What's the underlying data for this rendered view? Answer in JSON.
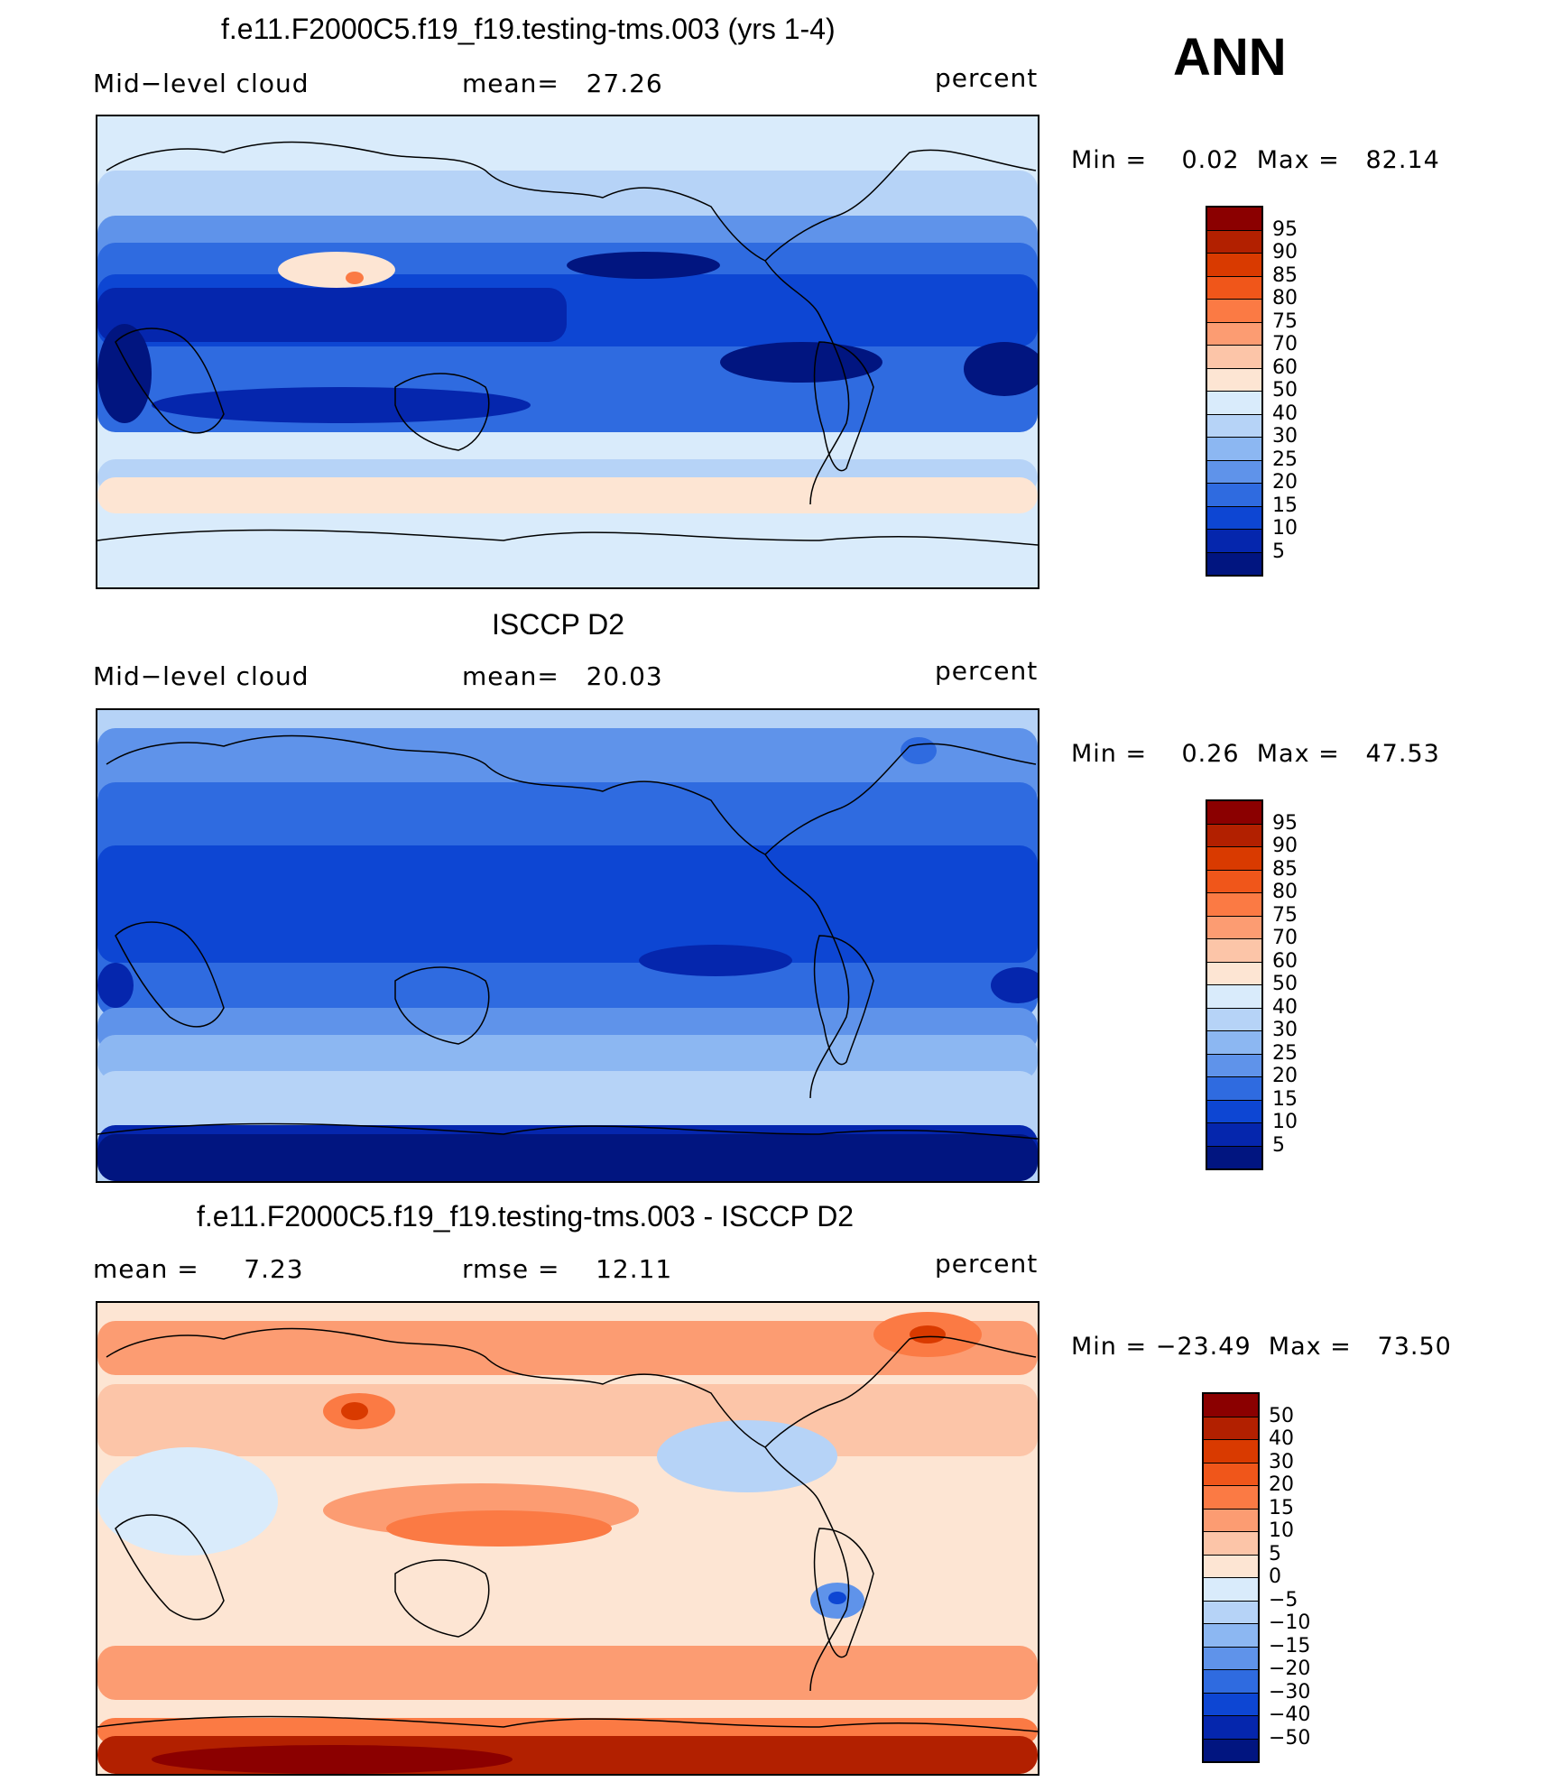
{
  "season": "ANN",
  "panels": [
    {
      "title": "f.e11.F2000C5.f19_f19.testing-tms.003 (yrs 1-4)",
      "left_label": "Mid−level cloud",
      "center_label": "mean=   27.26",
      "units": "percent",
      "range_text": "Min =    0.02  Max =   82.14",
      "type": "field",
      "scheme": "model",
      "colorbar": {
        "labels": [
          "95",
          "90",
          "85",
          "80",
          "75",
          "70",
          "60",
          "50",
          "40",
          "30",
          "25",
          "20",
          "15",
          "10",
          "5"
        ],
        "colors": [
          "#8b0000",
          "#b22000",
          "#d93a00",
          "#f0561a",
          "#fb7a44",
          "#fc9c72",
          "#fcc5a8",
          "#fde5d3",
          "#d9ebfb",
          "#b6d3f7",
          "#8cb7f2",
          "#5f93ea",
          "#2f6be0",
          "#0d46d3",
          "#0526ad",
          "#011580"
        ]
      }
    },
    {
      "title": "ISCCP D2",
      "left_label": "Mid−level cloud",
      "center_label": "mean=   20.03",
      "units": "percent",
      "range_text": "Min =    0.26  Max =   47.53",
      "type": "field",
      "scheme": "obs",
      "colorbar": {
        "labels": [
          "95",
          "90",
          "85",
          "80",
          "75",
          "70",
          "60",
          "50",
          "40",
          "30",
          "25",
          "20",
          "15",
          "10",
          "5"
        ],
        "colors": [
          "#8b0000",
          "#b22000",
          "#d93a00",
          "#f0561a",
          "#fb7a44",
          "#fc9c72",
          "#fcc5a8",
          "#fde5d3",
          "#d9ebfb",
          "#b6d3f7",
          "#8cb7f2",
          "#5f93ea",
          "#2f6be0",
          "#0d46d3",
          "#0526ad",
          "#011580"
        ]
      }
    },
    {
      "title": "f.e11.F2000C5.f19_f19.testing-tms.003 - ISCCP D2",
      "left_label": "mean =     7.23",
      "center_label": "rmse =    12.11",
      "units": "percent",
      "range_text": "Min = −23.49  Max =   73.50",
      "type": "diff",
      "scheme": "diff",
      "colorbar": {
        "labels": [
          "50",
          "40",
          "30",
          "20",
          "15",
          "10",
          "5",
          "0",
          "−5",
          "−10",
          "−15",
          "−20",
          "−30",
          "−40",
          "−50"
        ],
        "colors": [
          "#8b0000",
          "#b22000",
          "#d93a00",
          "#f0561a",
          "#fb7a44",
          "#fc9c72",
          "#fcc5a8",
          "#fde5d3",
          "#d9ebfb",
          "#b6d3f7",
          "#8cb7f2",
          "#5f93ea",
          "#2f6be0",
          "#0d46d3",
          "#0526ad",
          "#011580"
        ]
      }
    }
  ]
}
